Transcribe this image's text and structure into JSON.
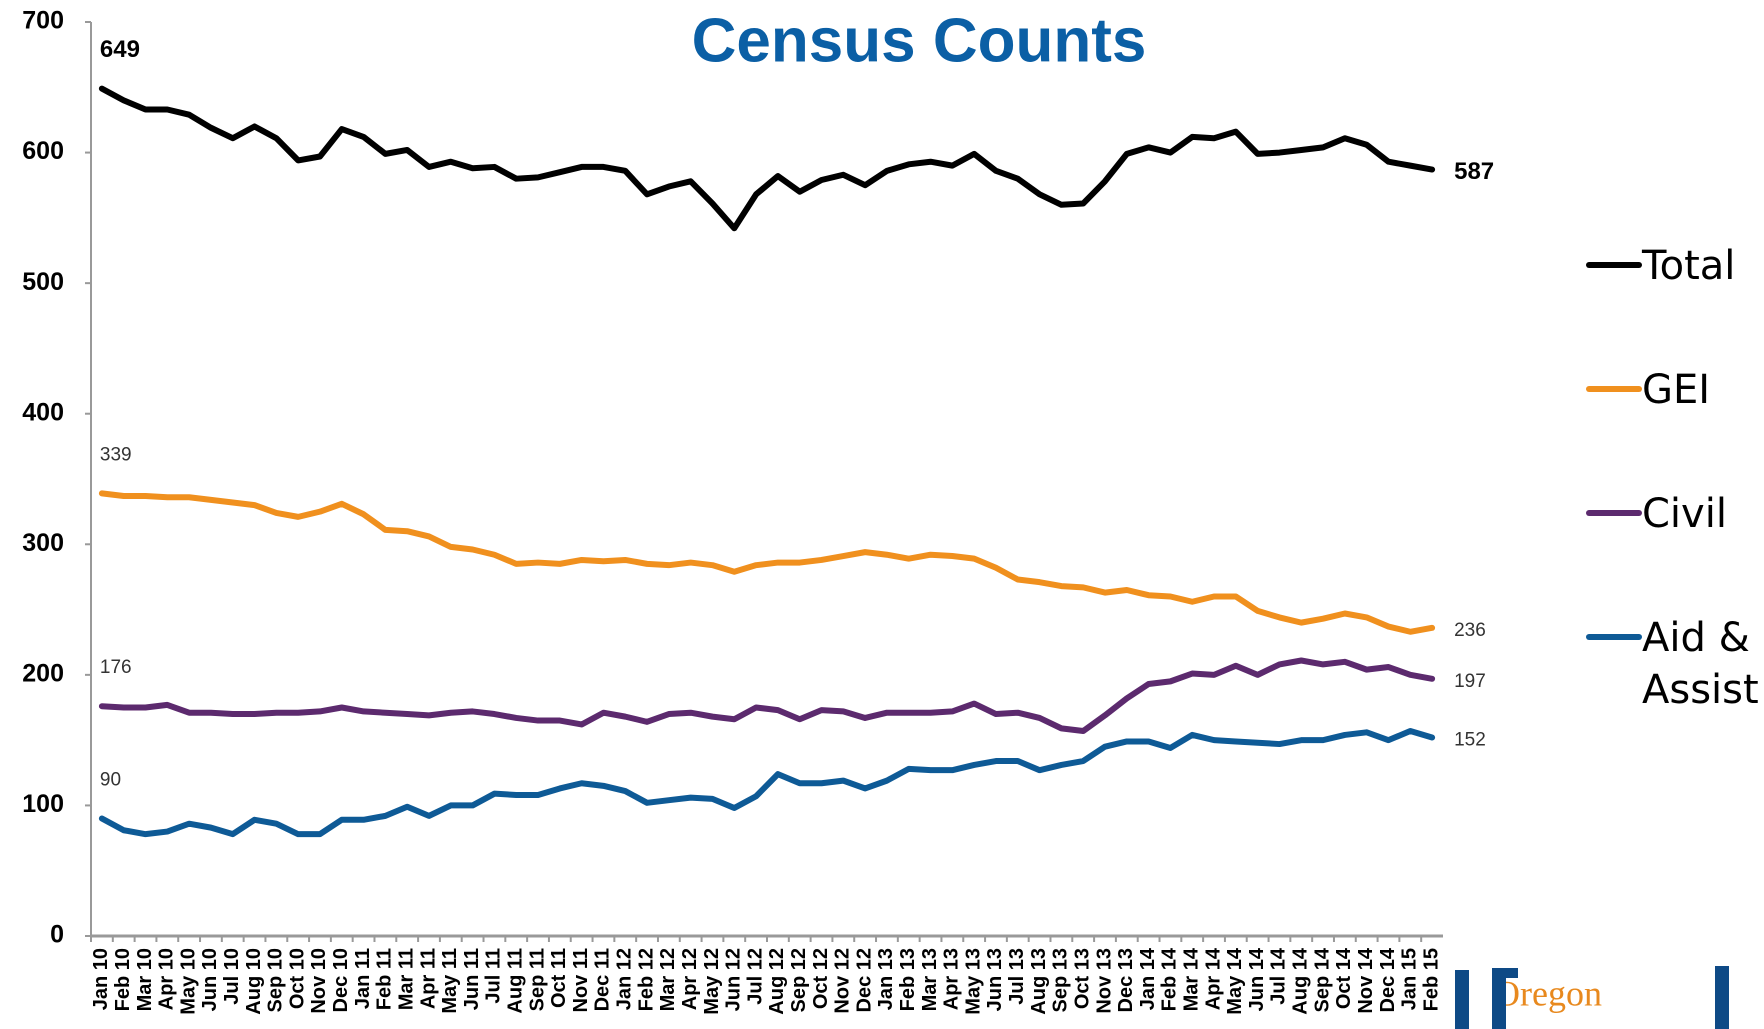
{
  "chart_data": {
    "type": "line",
    "title": "Census Counts",
    "categories": [
      "Jan 10",
      "Feb 10",
      "Mar 10",
      "Apr 10",
      "May 10",
      "Jun 10",
      "Jul 10",
      "Aug 10",
      "Sep 10",
      "Oct 10",
      "Nov 10",
      "Dec 10",
      "Jan 11",
      "Feb 11",
      "Mar 11",
      "Apr 11",
      "May 11",
      "Jun 11",
      "Jul 11",
      "Aug 11",
      "Sep 11",
      "Oct 11",
      "Nov 11",
      "Dec 11",
      "Jan 12",
      "Feb 12",
      "Mar 12",
      "Apr 12",
      "May 12",
      "Jun 12",
      "Jul 12",
      "Aug 12",
      "Sep 12",
      "Oct 12",
      "Nov 12",
      "Dec 12",
      "Jan 13",
      "Feb 13",
      "Mar 13",
      "Apr 13",
      "May 13",
      "Jun 13",
      "Jul 13",
      "Aug 13",
      "Sep 13",
      "Oct 13",
      "Nov 13",
      "Dec 13",
      "Jan 14",
      "Feb 14",
      "Mar 14",
      "Apr 14",
      "May 14",
      "Jun 14",
      "Jul 14",
      "Aug 14",
      "Sep 14",
      "Oct 14",
      "Nov 14",
      "Dec 14",
      "Jan 15",
      "Feb 15"
    ],
    "series": [
      {
        "name": "Total",
        "color": "#000000",
        "values": [
          649,
          640,
          633,
          633,
          629,
          619,
          611,
          620,
          611,
          594,
          597,
          618,
          612,
          599,
          602,
          589,
          593,
          588,
          589,
          580,
          581,
          585,
          589,
          589,
          586,
          568,
          574,
          578,
          561,
          542,
          568,
          582,
          570,
          579,
          583,
          575,
          586,
          591,
          593,
          590,
          599,
          586,
          580,
          568,
          560,
          561,
          578,
          599,
          604,
          600,
          612,
          611,
          616,
          599,
          600,
          602,
          604,
          611,
          606,
          593,
          590,
          587
        ]
      },
      {
        "name": "GEI",
        "color": "#f0901e",
        "values": [
          339,
          337,
          337,
          336,
          336,
          334,
          332,
          330,
          324,
          321,
          325,
          331,
          323,
          311,
          310,
          306,
          298,
          296,
          292,
          285,
          286,
          285,
          288,
          287,
          288,
          285,
          284,
          286,
          284,
          279,
          284,
          286,
          286,
          288,
          291,
          294,
          292,
          289,
          292,
          291,
          289,
          282,
          273,
          271,
          268,
          267,
          263,
          265,
          261,
          260,
          256,
          260,
          260,
          249,
          244,
          240,
          243,
          247,
          244,
          237,
          233,
          236
        ]
      },
      {
        "name": "Civil",
        "color": "#5c2a6e",
        "values": [
          176,
          175,
          175,
          177,
          171,
          171,
          170,
          170,
          171,
          171,
          172,
          175,
          172,
          171,
          170,
          169,
          171,
          172,
          170,
          167,
          165,
          165,
          162,
          171,
          168,
          164,
          170,
          171,
          168,
          166,
          175,
          173,
          166,
          173,
          172,
          167,
          171,
          171,
          171,
          172,
          178,
          170,
          171,
          167,
          159,
          157,
          169,
          182,
          193,
          195,
          201,
          200,
          207,
          200,
          208,
          211,
          208,
          210,
          204,
          206,
          200,
          197
        ]
      },
      {
        "name": "Aid & Assist",
        "color": "#0e5a96",
        "values": [
          90,
          81,
          78,
          80,
          86,
          83,
          78,
          89,
          86,
          78,
          78,
          89,
          89,
          92,
          99,
          92,
          100,
          100,
          109,
          108,
          108,
          113,
          117,
          115,
          111,
          102,
          104,
          106,
          105,
          98,
          107,
          124,
          117,
          117,
          119,
          113,
          119,
          128,
          127,
          127,
          131,
          134,
          134,
          127,
          131,
          134,
          145,
          149,
          149,
          144,
          154,
          150,
          149,
          148,
          147,
          150,
          150,
          154,
          156,
          150,
          157,
          152
        ]
      }
    ],
    "ylim": [
      0,
      700
    ],
    "yticks": [
      0,
      100,
      200,
      300,
      400,
      500,
      600,
      700
    ],
    "grid": false,
    "legend": "right",
    "logo": "Oregon"
  }
}
